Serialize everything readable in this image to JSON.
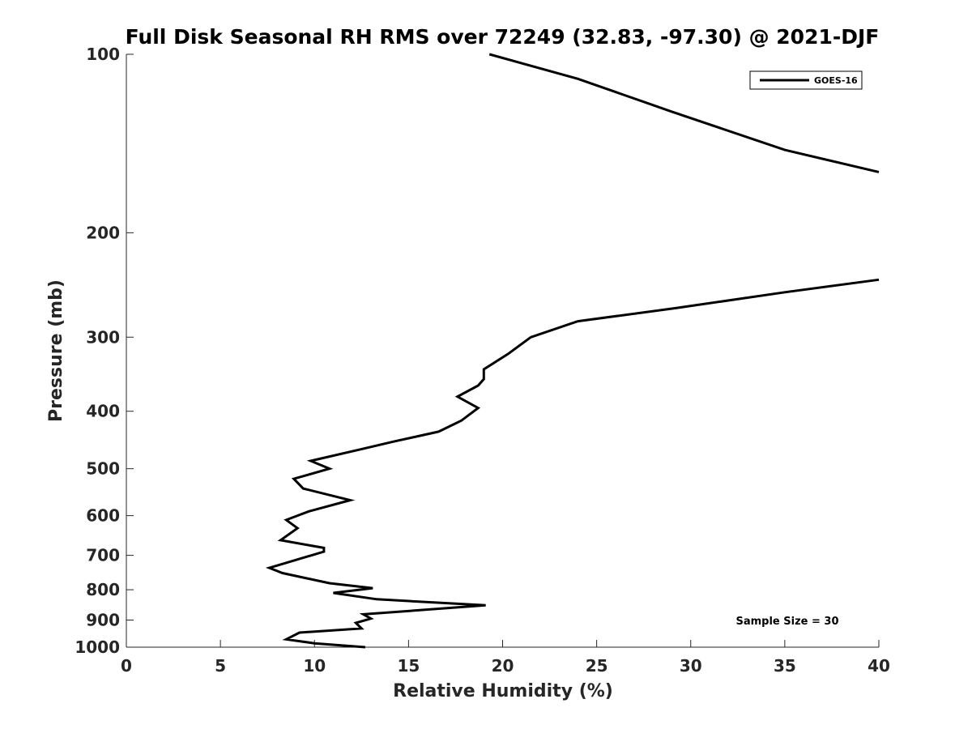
{
  "chart_data": {
    "type": "line",
    "title": "Full Disk Seasonal RH RMS over 72249 (32.83, -97.30) @ 2021-DJF",
    "xlabel": "Relative Humidity (%)",
    "ylabel": "Pressure (mb)",
    "xlim": [
      0,
      40
    ],
    "ylim": [
      1000,
      100
    ],
    "yscale": "log",
    "x_ticks": [
      0,
      5,
      10,
      15,
      20,
      25,
      30,
      35,
      40
    ],
    "x_tick_labels": [
      "0",
      "5",
      "10",
      "15",
      "20",
      "25",
      "30",
      "35",
      "40"
    ],
    "y_ticks": [
      100,
      200,
      300,
      400,
      500,
      600,
      700,
      800,
      900,
      1000
    ],
    "y_tick_labels": [
      "100",
      "200",
      "300",
      "400",
      "500",
      "600",
      "700",
      "800",
      "900",
      "1000"
    ],
    "grid": false,
    "legend": {
      "position": "top-right",
      "entries": [
        "GOES-16"
      ]
    },
    "annotation": "Sample Size = 30",
    "series": [
      {
        "name": "GOES-16",
        "color": "#000000",
        "points": [
          [
            19.3,
            100
          ],
          [
            24.0,
            110
          ],
          [
            29.0,
            125
          ],
          [
            35.0,
            145
          ],
          [
            40.0,
            158
          ],
          [
            null,
            null
          ],
          [
            40.0,
            240
          ],
          [
            35.0,
            252
          ],
          [
            29.2,
            268
          ],
          [
            24.0,
            282
          ],
          [
            21.5,
            300
          ],
          [
            20.3,
            320
          ],
          [
            19.0,
            340
          ],
          [
            19.0,
            353
          ],
          [
            18.7,
            362
          ],
          [
            17.6,
            378
          ],
          [
            18.7,
            395
          ],
          [
            17.8,
            415
          ],
          [
            16.6,
            433
          ],
          [
            14.2,
            450
          ],
          [
            12.3,
            465
          ],
          [
            9.8,
            485
          ],
          [
            10.8,
            500
          ],
          [
            8.9,
            520
          ],
          [
            9.4,
            540
          ],
          [
            11.9,
            565
          ],
          [
            9.7,
            590
          ],
          [
            8.5,
            610
          ],
          [
            9.1,
            630
          ],
          [
            8.2,
            660
          ],
          [
            10.5,
            680
          ],
          [
            10.5,
            690
          ],
          [
            7.6,
            735
          ],
          [
            8.3,
            750
          ],
          [
            10.8,
            780
          ],
          [
            13.1,
            795
          ],
          [
            11.0,
            810
          ],
          [
            13.3,
            830
          ],
          [
            19.1,
            850
          ],
          [
            12.6,
            880
          ],
          [
            13.0,
            895
          ],
          [
            12.2,
            910
          ],
          [
            12.5,
            930
          ],
          [
            9.2,
            945
          ],
          [
            8.5,
            970
          ],
          [
            10.0,
            985
          ],
          [
            12.7,
            1000
          ]
        ]
      }
    ]
  }
}
